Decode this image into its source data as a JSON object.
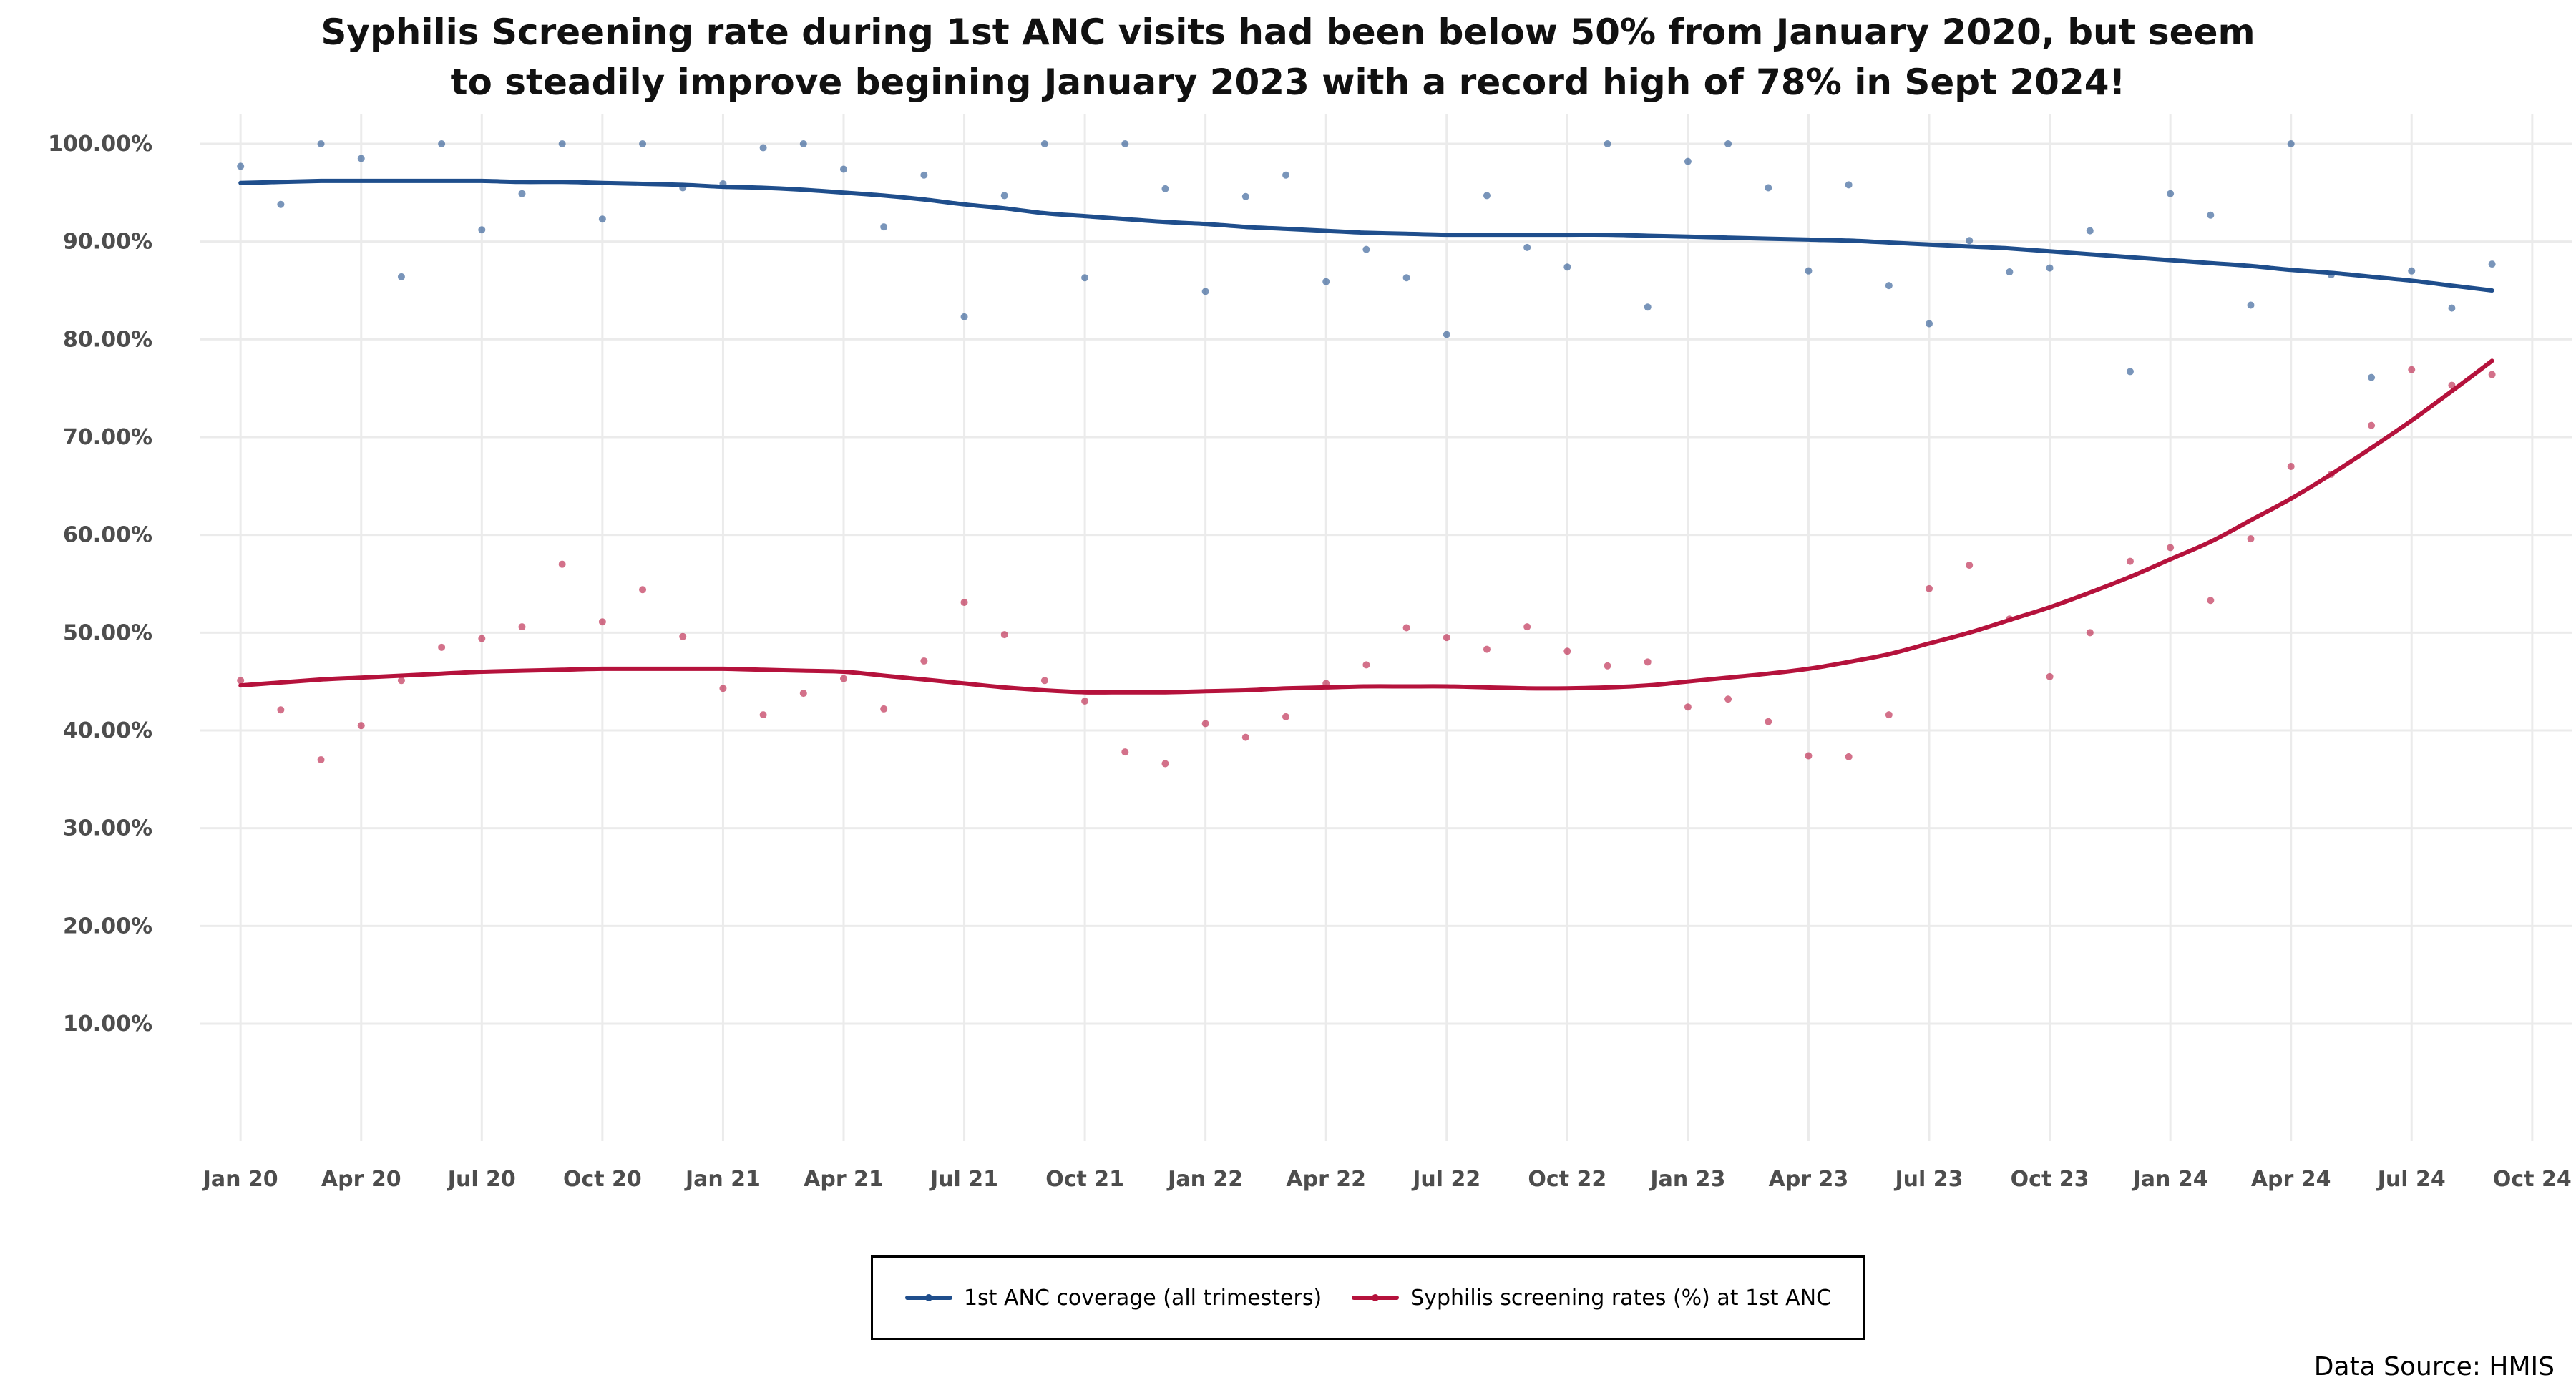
{
  "title": {
    "line1": "Syphilis Screening rate during 1st ANC visits had been below 50% from January 2020, but seem",
    "line2": "to steadily improve begining January 2023 with a record high of 78% in Sept 2024!"
  },
  "source": "Data Source: HMIS",
  "chart_data": {
    "type": "scatter",
    "title": "Syphilis Screening rate during 1st ANC visits had been below 50% from January 2020, but seem to steadily improve begining January 2023 with a record high of 78% in Sept 2024!",
    "xlabel": "",
    "ylabel": "",
    "x_tick_labels": [
      "Jan 20",
      "Apr 20",
      "Jul 20",
      "Oct 20",
      "Jan 21",
      "Apr 21",
      "Jul 21",
      "Oct 21",
      "Jan 22",
      "Apr 22",
      "Jul 22",
      "Oct 22",
      "Jan 23",
      "Apr 23",
      "Jul 23",
      "Oct 23",
      "Jan 24",
      "Apr 24",
      "Jul 24",
      "Oct 24"
    ],
    "y_tick_labels": [
      "10.00%",
      "20.00%",
      "30.00%",
      "40.00%",
      "50.00%",
      "60.00%",
      "70.00%",
      "80.00%",
      "90.00%",
      "100.00%"
    ],
    "y_ticks": [
      10,
      20,
      30,
      40,
      50,
      60,
      70,
      80,
      90,
      100
    ],
    "ylim": [
      -2,
      103
    ],
    "xlim": [
      "2019-12",
      "2024-11"
    ],
    "grid": true,
    "legend_position": "bottom",
    "x": [
      "2020-01",
      "2020-02",
      "2020-03",
      "2020-04",
      "2020-05",
      "2020-06",
      "2020-07",
      "2020-08",
      "2020-09",
      "2020-10",
      "2020-11",
      "2020-12",
      "2021-01",
      "2021-02",
      "2021-03",
      "2021-04",
      "2021-05",
      "2021-06",
      "2021-07",
      "2021-08",
      "2021-09",
      "2021-10",
      "2021-11",
      "2021-12",
      "2022-01",
      "2022-02",
      "2022-03",
      "2022-04",
      "2022-05",
      "2022-06",
      "2022-07",
      "2022-08",
      "2022-09",
      "2022-10",
      "2022-11",
      "2022-12",
      "2023-01",
      "2023-02",
      "2023-03",
      "2023-04",
      "2023-05",
      "2023-06",
      "2023-07",
      "2023-08",
      "2023-09",
      "2023-10",
      "2023-11",
      "2023-12",
      "2024-01",
      "2024-02",
      "2024-03",
      "2024-04",
      "2024-05",
      "2024-06",
      "2024-07",
      "2024-08",
      "2024-09"
    ],
    "series": [
      {
        "name": "1st ANC coverage (all trimesters)",
        "color": "#1f4e8c",
        "values": [
          97.7,
          93.8,
          100,
          98.5,
          86.4,
          100,
          91.2,
          94.9,
          100,
          92.3,
          100,
          95.5,
          95.9,
          99.6,
          100,
          97.4,
          91.5,
          96.8,
          82.3,
          94.7,
          100,
          86.3,
          100,
          95.4,
          84.9,
          94.6,
          96.8,
          85.9,
          89.2,
          86.3,
          80.5,
          94.7,
          89.4,
          87.4,
          100,
          83.3,
          98.2,
          100,
          95.5,
          87.0,
          95.8,
          85.5,
          81.6,
          90.1,
          86.9,
          87.3,
          91.1,
          76.7,
          94.9,
          92.7,
          83.5,
          100,
          86.6,
          76.1,
          87.0,
          83.2,
          87.7
        ],
        "trend": [
          96.0,
          96.1,
          96.2,
          96.2,
          96.2,
          96.2,
          96.2,
          96.1,
          96.1,
          96.0,
          95.9,
          95.8,
          95.6,
          95.5,
          95.3,
          95.0,
          94.7,
          94.3,
          93.8,
          93.4,
          92.9,
          92.6,
          92.3,
          92.0,
          91.8,
          91.5,
          91.3,
          91.1,
          90.9,
          90.8,
          90.7,
          90.7,
          90.7,
          90.7,
          90.7,
          90.6,
          90.5,
          90.4,
          90.3,
          90.2,
          90.1,
          89.9,
          89.7,
          89.5,
          89.3,
          89.0,
          88.7,
          88.4,
          88.1,
          87.8,
          87.5,
          87.1,
          86.8,
          86.4,
          86.0,
          85.5,
          85.0
        ]
      },
      {
        "name": "Syphilis screening rates (%) at 1st ANC",
        "color": "#b5123c",
        "values": [
          45.1,
          42.1,
          37.0,
          40.5,
          45.1,
          48.5,
          49.4,
          50.6,
          57.0,
          51.1,
          54.4,
          49.6,
          44.3,
          41.6,
          43.8,
          45.3,
          42.2,
          47.1,
          53.1,
          49.8,
          45.1,
          43.0,
          37.8,
          36.6,
          40.7,
          39.3,
          41.4,
          44.8,
          46.7,
          50.5,
          49.5,
          48.3,
          50.6,
          48.1,
          46.6,
          47.0,
          42.4,
          43.2,
          40.9,
          37.4,
          37.3,
          41.6,
          54.5,
          56.9,
          51.4,
          45.5,
          50.0,
          57.3,
          58.7,
          53.3,
          59.6,
          67.0,
          66.2,
          71.2,
          76.9,
          75.3,
          76.4
        ],
        "trend": [
          44.6,
          44.9,
          45.2,
          45.4,
          45.6,
          45.8,
          46.0,
          46.1,
          46.2,
          46.3,
          46.3,
          46.3,
          46.3,
          46.2,
          46.1,
          46.0,
          45.6,
          45.2,
          44.8,
          44.4,
          44.1,
          43.9,
          43.9,
          43.9,
          44.0,
          44.1,
          44.3,
          44.4,
          44.5,
          44.5,
          44.5,
          44.4,
          44.3,
          44.3,
          44.4,
          44.6,
          45.0,
          45.4,
          45.8,
          46.3,
          47.0,
          47.8,
          48.9,
          50.0,
          51.3,
          52.6,
          54.1,
          55.7,
          57.5,
          59.3,
          61.5,
          63.7,
          66.2,
          68.9,
          71.7,
          74.7,
          77.8
        ]
      }
    ]
  }
}
